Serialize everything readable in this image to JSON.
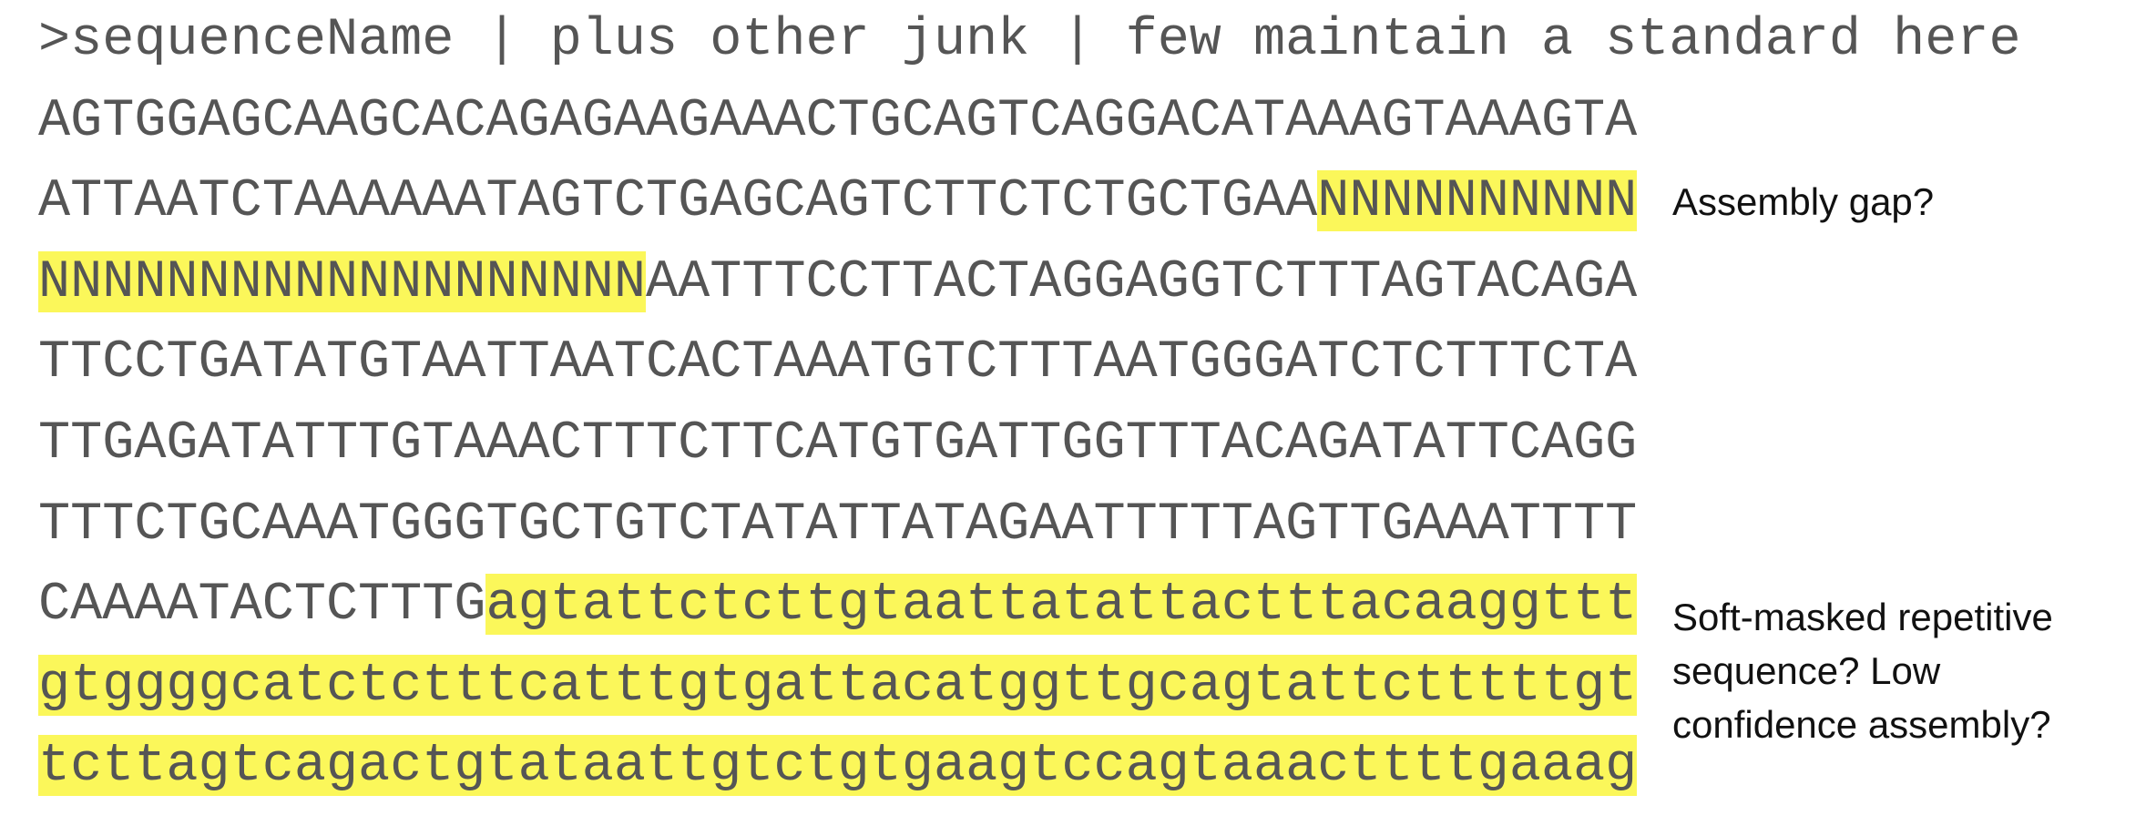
{
  "lines": [
    {
      "segments": [
        {
          "text": ">sequenceName | plus other junk | few maintain a standard here",
          "highlighted": false
        }
      ]
    },
    {
      "segments": [
        {
          "text": "AGTGGAGCAAGCACAGAGAAGAAACTGCAGTCAGGACATAAAGTAAAGTA",
          "highlighted": false
        }
      ]
    },
    {
      "segments": [
        {
          "text": "ATTAATCTAAAAAATAGTCTGAGCAGTCTTCTCTGCTGAA",
          "highlighted": false
        },
        {
          "text": "NNNNNNNNNN",
          "highlighted": true
        }
      ]
    },
    {
      "segments": [
        {
          "text": "NNNNNNNNNNNNNNNNNNN",
          "highlighted": true
        },
        {
          "text": "AATTTCCTTACTAGGAGGTCTTTAGTACAGA",
          "highlighted": false
        }
      ]
    },
    {
      "segments": [
        {
          "text": "TTCCTGATATGTAATTAATCACTAAATGTCTTTAATGGGATCTCTTTCTA",
          "highlighted": false
        }
      ]
    },
    {
      "segments": [
        {
          "text": "TTGAGATATTTGTAAACTTTCTTCATGTGATTGGTTTACAGATATTCAGG",
          "highlighted": false
        }
      ]
    },
    {
      "segments": [
        {
          "text": "TTTCTGCAAATGGGTGCTGTCTATATTATAGAATTTTTAGTTGAAATTTT",
          "highlighted": false
        }
      ]
    },
    {
      "segments": [
        {
          "text": "CAAAATACTCTTTG",
          "highlighted": false
        },
        {
          "text": "agtattctcttgtaattatattactttacaaggttt",
          "highlighted": true
        }
      ]
    },
    {
      "segments": [
        {
          "text": "gtggggcatctctttcatttgtgattacatggttgcagtattctttttgt",
          "highlighted": true
        }
      ]
    },
    {
      "segments": [
        {
          "text": "tcttagtcagactgtataattgtctgtgaagtccagtaaacttttgaaag",
          "highlighted": true
        }
      ]
    }
  ],
  "annotations": [
    {
      "line": 2,
      "lines": [
        "Assembly gap?"
      ]
    },
    {
      "line": 7,
      "lines": [
        "Soft-masked repetitive",
        "sequence? Low",
        "confidence assembly?"
      ]
    }
  ]
}
